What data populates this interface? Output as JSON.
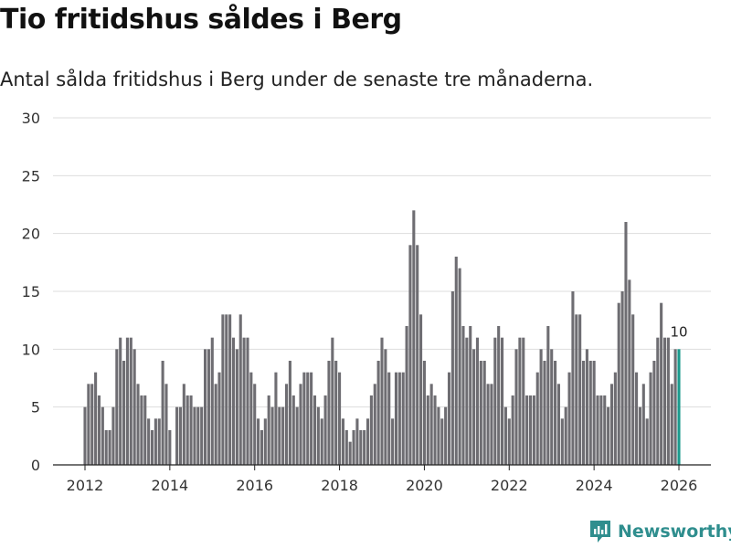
{
  "title": "Tio fritidshus såldes i Berg",
  "subtitle": "Antal sålda fritidshus i Berg under de senaste tre månaderna.",
  "brand": {
    "name": "Newsworthy",
    "icon": "newsworthy-logo-icon",
    "color": "#2f8e8e"
  },
  "colors": {
    "bar": "#6e6d72",
    "highlight": "#1a9a8d",
    "grid": "#dddddd",
    "axis": "#555555"
  },
  "chart_data": {
    "type": "bar",
    "title": "Tio fritidshus såldes i Berg",
    "xlabel": "",
    "ylabel": "",
    "ylim": [
      0,
      30
    ],
    "yticks": [
      0,
      5,
      10,
      15,
      20,
      25,
      30
    ],
    "xticks": [
      "2012",
      "2014",
      "2016",
      "2018",
      "2020",
      "2022",
      "2024",
      "2026"
    ],
    "start": "2012-01",
    "end": "2026-01",
    "highlight_label": "10",
    "values": [
      5,
      7,
      7,
      8,
      6,
      5,
      3,
      3,
      5,
      10,
      11,
      9,
      11,
      11,
      10,
      7,
      6,
      6,
      4,
      3,
      4,
      4,
      9,
      7,
      3,
      0,
      5,
      5,
      7,
      6,
      6,
      5,
      5,
      5,
      10,
      10,
      11,
      7,
      8,
      13,
      13,
      13,
      11,
      10,
      13,
      11,
      11,
      8,
      7,
      4,
      3,
      4,
      6,
      5,
      8,
      5,
      5,
      7,
      9,
      6,
      5,
      7,
      8,
      8,
      8,
      6,
      5,
      4,
      6,
      9,
      11,
      9,
      8,
      4,
      3,
      2,
      3,
      4,
      3,
      3,
      4,
      6,
      7,
      9,
      11,
      10,
      8,
      4,
      8,
      8,
      8,
      12,
      19,
      22,
      19,
      13,
      9,
      6,
      7,
      6,
      5,
      4,
      5,
      8,
      15,
      18,
      17,
      12,
      11,
      12,
      10,
      11,
      9,
      9,
      7,
      7,
      11,
      12,
      11,
      5,
      4,
      6,
      10,
      11,
      11,
      6,
      6,
      6,
      8,
      10,
      9,
      12,
      10,
      9,
      7,
      4,
      5,
      8,
      15,
      13,
      13,
      9,
      10,
      9,
      9,
      6,
      6,
      6,
      5,
      7,
      8,
      14,
      15,
      21,
      16,
      13,
      8,
      5,
      7,
      4,
      8,
      9,
      11,
      14,
      11,
      11,
      7,
      10,
      10
    ]
  }
}
